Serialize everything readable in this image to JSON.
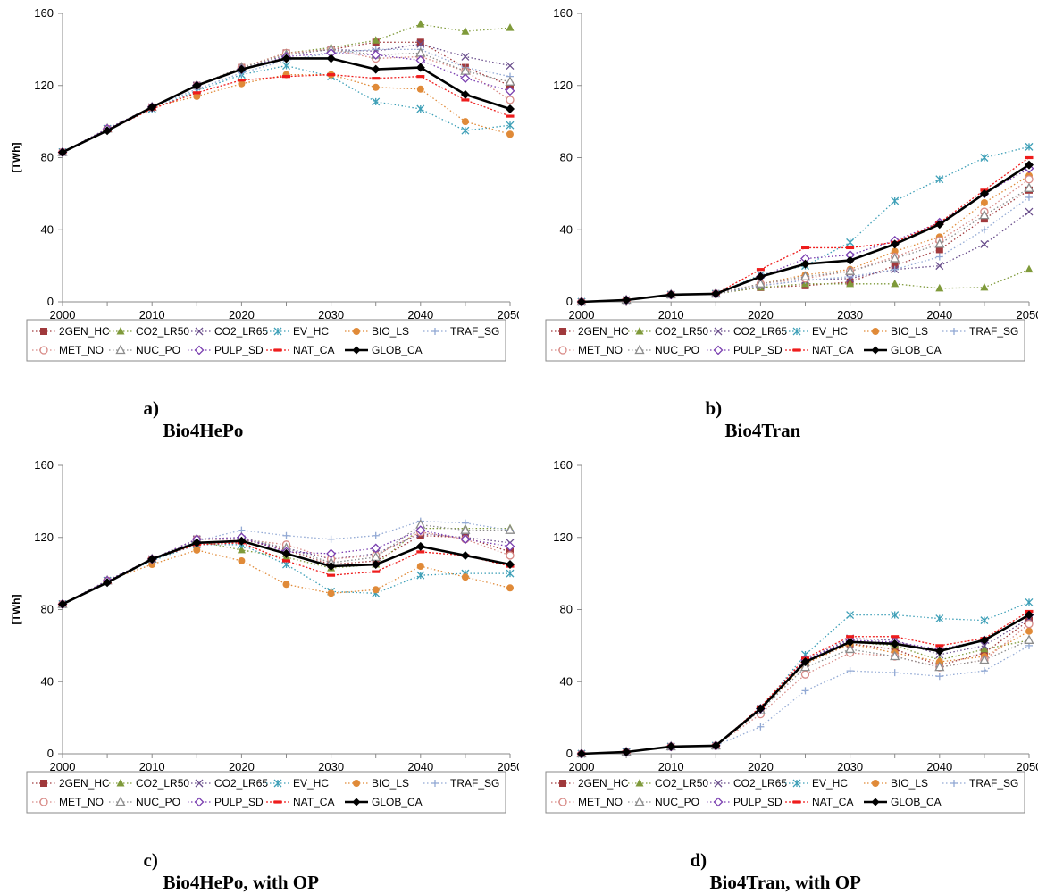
{
  "chart_data": [
    {
      "type": "line",
      "caption_letter": "a)",
      "caption_text": "Bio4HePo",
      "ylabel": "[TWh]",
      "ylim": [
        0,
        160
      ],
      "yticks": [
        0,
        40,
        80,
        120,
        160
      ],
      "x": [
        2000,
        2005,
        2010,
        2015,
        2020,
        2025,
        2030,
        2035,
        2040,
        2045,
        2050
      ],
      "xticks": [
        2000,
        2010,
        2020,
        2030,
        2040,
        2050
      ],
      "series": [
        {
          "name": "2GEN_HC",
          "values": [
            83,
            96,
            108,
            120,
            130,
            138,
            140,
            144,
            144,
            130,
            120
          ]
        },
        {
          "name": "CO2_LR50",
          "values": [
            83,
            96,
            108,
            120,
            130,
            138,
            141,
            145,
            154,
            150,
            152
          ]
        },
        {
          "name": "CO2_LR65",
          "values": [
            83,
            96,
            108,
            120,
            129,
            137,
            140,
            139,
            143,
            136,
            131
          ]
        },
        {
          "name": "EV_HC",
          "values": [
            83,
            96,
            107,
            117,
            126,
            131,
            125,
            111,
            107,
            95,
            98
          ]
        },
        {
          "name": "BIO_LS",
          "values": [
            83,
            96,
            108,
            114,
            121,
            126,
            126,
            119,
            118,
            100,
            93
          ]
        },
        {
          "name": "TRAF_SG",
          "values": [
            83,
            96,
            108,
            118,
            127,
            134,
            138,
            140,
            140,
            130,
            125
          ]
        },
        {
          "name": "MET_NO",
          "values": [
            83,
            96,
            108,
            120,
            130,
            138,
            140,
            135,
            136,
            128,
            112
          ]
        },
        {
          "name": "NUC_PO",
          "values": [
            83,
            96,
            108,
            120,
            130,
            137,
            140,
            137,
            138,
            128,
            122
          ]
        },
        {
          "name": "PULP_SD",
          "values": [
            83,
            96,
            108,
            120,
            129,
            136,
            138,
            137,
            134,
            124,
            117
          ]
        },
        {
          "name": "NAT_CA",
          "values": [
            83,
            95,
            107,
            116,
            123,
            125,
            126,
            124,
            125,
            112,
            103
          ]
        },
        {
          "name": "GLOB_CA",
          "values": [
            83,
            95,
            108,
            120,
            129,
            135,
            135,
            129,
            130,
            115,
            107
          ]
        }
      ]
    },
    {
      "type": "line",
      "caption_letter": "b)",
      "caption_text": "Bio4Tran",
      "ylabel": "",
      "ylim": [
        0,
        160
      ],
      "yticks": [
        0,
        40,
        80,
        120,
        160
      ],
      "x": [
        2000,
        2005,
        2010,
        2015,
        2020,
        2025,
        2030,
        2035,
        2040,
        2045,
        2050
      ],
      "xticks": [
        2000,
        2010,
        2020,
        2030,
        2040,
        2050
      ],
      "series": [
        {
          "name": "2GEN_HC",
          "values": [
            0,
            1,
            4,
            4.5,
            8,
            9,
            11,
            20,
            29,
            46,
            62
          ]
        },
        {
          "name": "CO2_LR50",
          "values": [
            0,
            1,
            4,
            4.5,
            8,
            10,
            10,
            10,
            7.5,
            8,
            18
          ]
        },
        {
          "name": "CO2_LR65",
          "values": [
            0,
            1,
            4,
            4.5,
            9,
            12,
            13,
            18,
            20,
            32,
            50
          ]
        },
        {
          "name": "EV_HC",
          "values": [
            0,
            1,
            4,
            4.5,
            15,
            20,
            33,
            56,
            68,
            80,
            86
          ]
        },
        {
          "name": "BIO_LS",
          "values": [
            0,
            1,
            4,
            4.5,
            10,
            15,
            18,
            28,
            36,
            55,
            70
          ]
        },
        {
          "name": "TRAF_SG",
          "values": [
            0,
            1,
            4,
            4.5,
            9,
            12,
            14,
            18,
            25,
            40,
            58
          ]
        },
        {
          "name": "MET_NO",
          "values": [
            0,
            1,
            4,
            4.5,
            10,
            13,
            17,
            25,
            34,
            50,
            68
          ]
        },
        {
          "name": "NUC_PO",
          "values": [
            0,
            1,
            4,
            4.5,
            10,
            14,
            17,
            24,
            32,
            48,
            63
          ]
        },
        {
          "name": "PULP_SD",
          "values": [
            0,
            1,
            4,
            4.5,
            14,
            24,
            26,
            34,
            44,
            60,
            74
          ]
        },
        {
          "name": "NAT_CA",
          "values": [
            0,
            1,
            4,
            4.5,
            18,
            30,
            30,
            33,
            44,
            62,
            80
          ]
        },
        {
          "name": "GLOB_CA",
          "values": [
            0,
            1,
            4,
            4.5,
            14,
            21,
            23,
            32,
            43,
            60,
            76
          ]
        }
      ]
    },
    {
      "type": "line",
      "caption_letter": "c)",
      "caption_text": "Bio4HePo, with OP",
      "ylabel": "[TWh]",
      "ylim": [
        0,
        160
      ],
      "yticks": [
        0,
        40,
        80,
        120,
        160
      ],
      "x": [
        2000,
        2005,
        2010,
        2015,
        2020,
        2025,
        2030,
        2035,
        2040,
        2045,
        2050
      ],
      "xticks": [
        2000,
        2010,
        2020,
        2030,
        2040,
        2050
      ],
      "series": [
        {
          "name": "2GEN_HC",
          "values": [
            83,
            96,
            108,
            119,
            119,
            113,
            105,
            107,
            121,
            120,
            112
          ]
        },
        {
          "name": "CO2_LR50",
          "values": [
            83,
            96,
            108,
            118,
            113,
            109,
            103,
            105,
            125,
            125,
            125
          ]
        },
        {
          "name": "CO2_LR65",
          "values": [
            83,
            96,
            108,
            119,
            119,
            114,
            108,
            111,
            122,
            120,
            117
          ]
        },
        {
          "name": "EV_HC",
          "values": [
            83,
            96,
            107,
            116,
            116,
            105,
            90,
            89,
            99,
            100,
            100
          ]
        },
        {
          "name": "BIO_LS",
          "values": [
            83,
            96,
            105,
            113,
            107,
            94,
            89,
            91,
            104,
            98,
            92
          ]
        },
        {
          "name": "TRAF_SG",
          "values": [
            83,
            96,
            108,
            118,
            124,
            121,
            119,
            121,
            129,
            128,
            124
          ]
        },
        {
          "name": "MET_NO",
          "values": [
            83,
            96,
            108,
            119,
            119,
            116,
            108,
            110,
            123,
            119,
            110
          ]
        },
        {
          "name": "NUC_PO",
          "values": [
            83,
            96,
            108,
            119,
            120,
            114,
            106,
            109,
            127,
            124,
            124
          ]
        },
        {
          "name": "PULP_SD",
          "values": [
            83,
            96,
            108,
            119,
            120,
            112,
            111,
            114,
            124,
            119,
            115
          ]
        },
        {
          "name": "NAT_CA",
          "values": [
            83,
            95,
            108,
            116,
            117,
            107,
            99,
            101,
            112,
            110,
            104
          ]
        },
        {
          "name": "GLOB_CA",
          "values": [
            83,
            95,
            108,
            117,
            118,
            111,
            104,
            105,
            115,
            110,
            105
          ]
        }
      ]
    },
    {
      "type": "line",
      "caption_letter": "d)",
      "caption_text": "Bio4Tran, with OP",
      "ylabel": "",
      "ylim": [
        0,
        160
      ],
      "yticks": [
        0,
        40,
        80,
        120,
        160
      ],
      "x": [
        2000,
        2005,
        2010,
        2015,
        2020,
        2025,
        2030,
        2035,
        2040,
        2045,
        2050
      ],
      "xticks": [
        2000,
        2010,
        2020,
        2030,
        2040,
        2050
      ],
      "series": [
        {
          "name": "2GEN_HC",
          "values": [
            0,
            1,
            4,
            4.5,
            25,
            50,
            61,
            58,
            49,
            56,
            74
          ]
        },
        {
          "name": "CO2_LR50",
          "values": [
            0,
            1,
            4,
            4.5,
            25,
            51,
            62,
            60,
            52,
            58,
            63
          ]
        },
        {
          "name": "CO2_LR65",
          "values": [
            0,
            1,
            4,
            4.5,
            25,
            52,
            64,
            63,
            55,
            60,
            75
          ]
        },
        {
          "name": "EV_HC",
          "values": [
            0,
            1,
            4,
            4.5,
            25,
            55,
            77,
            77,
            75,
            74,
            84
          ]
        },
        {
          "name": "BIO_LS",
          "values": [
            0,
            1,
            4,
            4.5,
            24,
            50,
            61,
            56,
            51,
            54,
            68
          ]
        },
        {
          "name": "TRAF_SG",
          "values": [
            0,
            1,
            4,
            4.5,
            15,
            35,
            46,
            45,
            43,
            46,
            60
          ]
        },
        {
          "name": "MET_NO",
          "values": [
            0,
            1,
            4,
            4.5,
            22,
            44,
            56,
            54,
            48,
            52,
            72
          ]
        },
        {
          "name": "NUC_PO",
          "values": [
            0,
            1,
            4,
            4.5,
            24,
            48,
            58,
            54,
            48,
            52,
            63
          ]
        },
        {
          "name": "PULP_SD",
          "values": [
            0,
            1,
            4,
            4.5,
            25,
            52,
            63,
            62,
            58,
            63,
            77
          ]
        },
        {
          "name": "NAT_CA",
          "values": [
            0,
            1,
            4,
            4.5,
            26,
            53,
            65,
            65,
            60,
            64,
            79
          ]
        },
        {
          "name": "GLOB_CA",
          "values": [
            0,
            1,
            4,
            4.5,
            25,
            51,
            62,
            61,
            57,
            63,
            77
          ]
        }
      ]
    }
  ],
  "series_styles": {
    "2GEN_HC": {
      "color": "#a0393c",
      "marker": "square"
    },
    "CO2_LR50": {
      "color": "#7f9a3a",
      "marker": "triangle"
    },
    "CO2_LR65": {
      "color": "#6a4e8c",
      "marker": "x"
    },
    "EV_HC": {
      "color": "#3d9fb7",
      "marker": "asterisk"
    },
    "BIO_LS": {
      "color": "#e08a38",
      "marker": "circle"
    },
    "TRAF_SG": {
      "color": "#92a9d4",
      "marker": "plus"
    },
    "MET_NO": {
      "color": "#d88a86",
      "marker": "circle-open"
    },
    "NUC_PO": {
      "color": "#8c8c8c",
      "marker": "triangle-open"
    },
    "PULP_SD": {
      "color": "#7a3fb0",
      "marker": "diamond-open"
    },
    "NAT_CA": {
      "color": "#ee1c1c",
      "marker": "dash"
    },
    "GLOB_CA": {
      "color": "#000000",
      "marker": "diamond"
    }
  }
}
